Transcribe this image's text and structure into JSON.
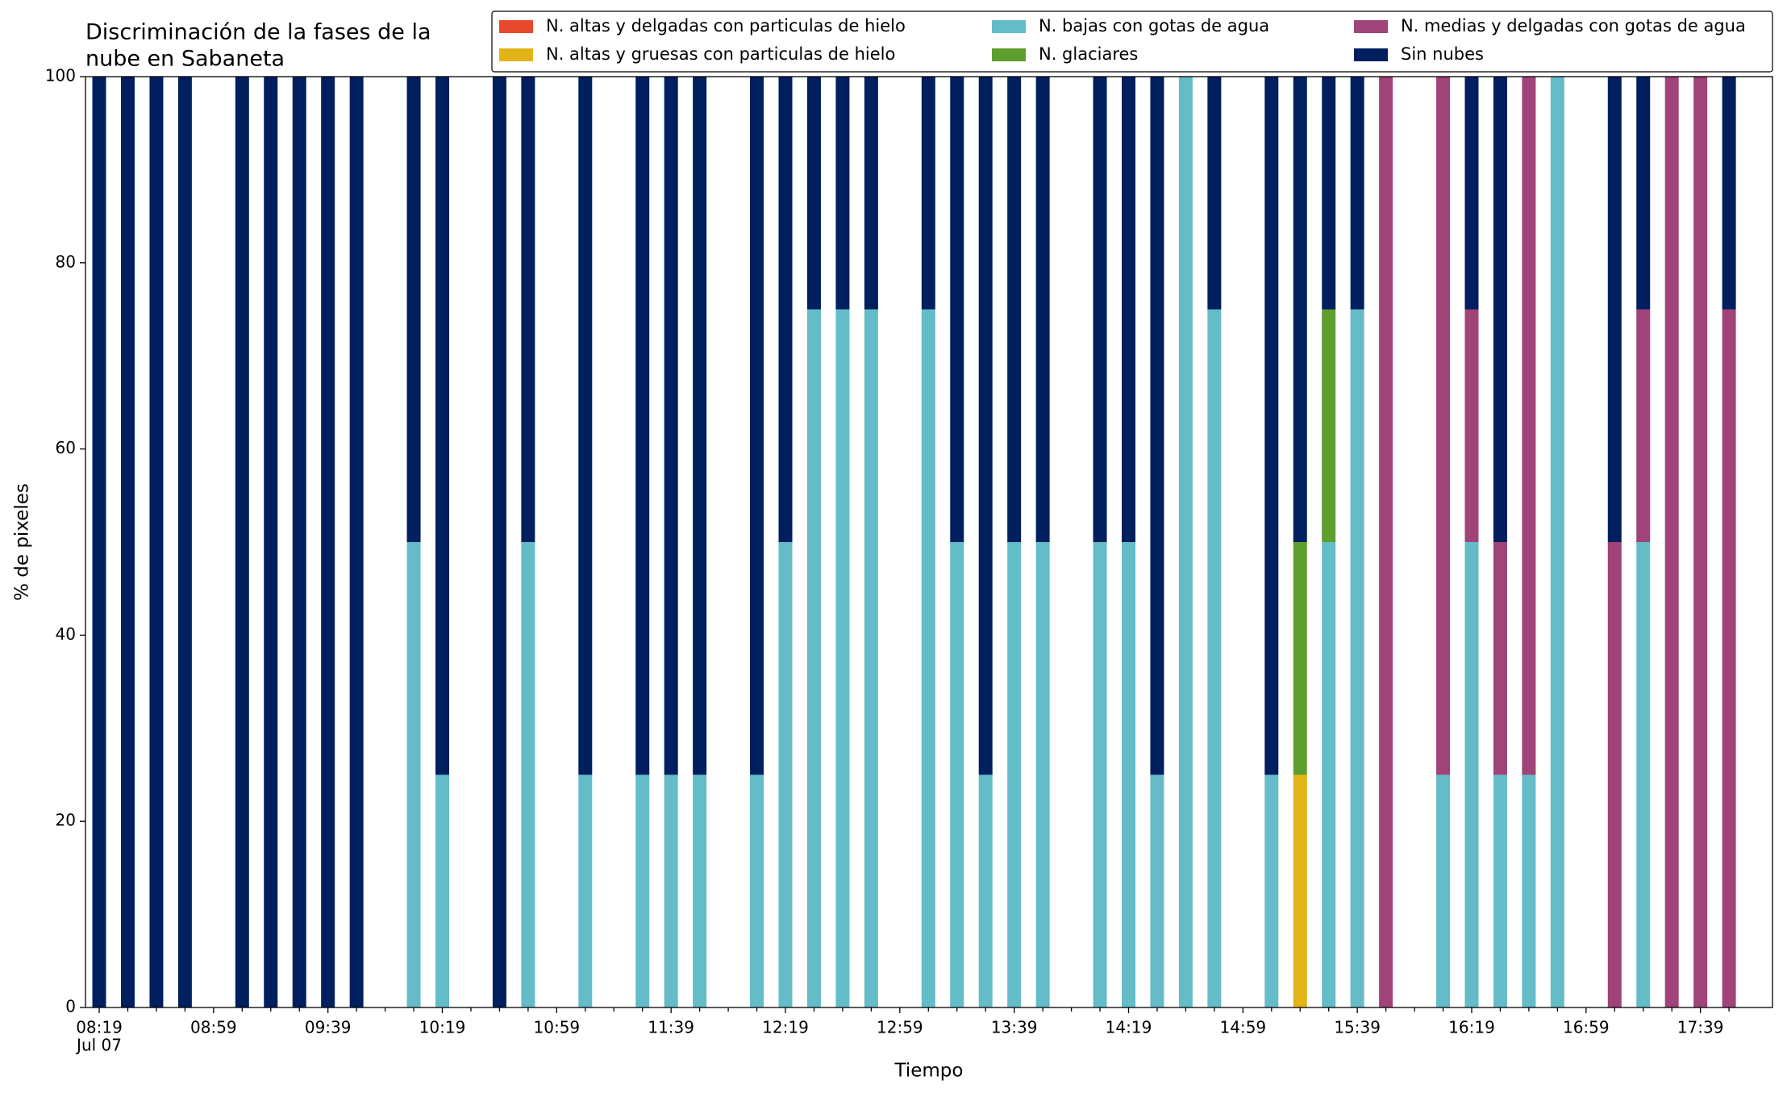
{
  "chart_data": {
    "type": "stacked_bar",
    "title": [
      "Discriminación de la fases de la",
      "nube en Sabaneta"
    ],
    "xlabel": "Tiempo",
    "ylabel": "% de pixeles",
    "x_sublabel": "Jul 07",
    "categories": [
      "08:19",
      null,
      null,
      null,
      "08:59",
      null,
      null,
      null,
      "09:39",
      null,
      null,
      null,
      "10:19",
      null,
      null,
      null,
      "10:59",
      null,
      null,
      null,
      "11:39",
      null,
      null,
      null,
      "12:19",
      null,
      null,
      null,
      "12:59",
      null,
      null,
      null,
      "13:39",
      null,
      null,
      null,
      "14:19",
      null,
      null,
      null,
      "14:59",
      null,
      null,
      null,
      "15:39",
      null,
      null,
      null,
      "16:19",
      null,
      null,
      null,
      "16:59",
      null,
      null,
      null,
      "17:39",
      null
    ],
    "ylim": [
      0,
      100
    ],
    "yticks": [
      0,
      20,
      40,
      60,
      80,
      100
    ],
    "grid": false,
    "legend": "upper right",
    "series": [
      {
        "name": "N. altas y delgadas con particulas de hielo",
        "color": "#e8482c",
        "values": [
          0,
          0,
          0,
          0,
          0,
          0,
          0,
          0,
          0,
          0,
          0,
          0,
          0,
          0,
          0,
          0,
          0,
          0,
          0,
          0,
          0,
          0,
          0,
          0,
          0,
          0,
          0,
          0,
          0,
          0,
          0,
          0,
          0,
          0,
          0,
          0,
          0,
          0,
          0,
          0,
          0,
          0,
          0,
          0,
          0,
          0,
          0,
          0,
          0,
          0,
          0,
          0,
          0,
          0,
          0,
          0,
          0,
          0
        ]
      },
      {
        "name": "N. altas y gruesas con particulas de hielo",
        "color": "#e3b418",
        "values": [
          0,
          0,
          0,
          0,
          0,
          0,
          0,
          0,
          0,
          0,
          0,
          0,
          0,
          0,
          0,
          0,
          0,
          0,
          0,
          0,
          0,
          0,
          0,
          0,
          0,
          0,
          0,
          0,
          0,
          0,
          0,
          0,
          0,
          0,
          0,
          0,
          0,
          0,
          0,
          0,
          0,
          0,
          25,
          0,
          0,
          0,
          0,
          0,
          0,
          0,
          0,
          0,
          0,
          0,
          0,
          0,
          0,
          0
        ]
      },
      {
        "name": "N. bajas con gotas de agua",
        "color": "#64bcc8",
        "values": [
          0,
          0,
          0,
          0,
          0,
          0,
          0,
          0,
          0,
          0,
          0,
          50,
          25,
          0,
          0,
          50,
          0,
          25,
          0,
          25,
          25,
          25,
          0,
          25,
          50,
          75,
          75,
          75,
          0,
          75,
          50,
          25,
          50,
          50,
          0,
          50,
          50,
          25,
          100,
          75,
          0,
          25,
          0,
          50,
          75,
          0,
          0,
          25,
          50,
          25,
          25,
          100,
          0,
          0,
          50,
          0,
          0,
          0
        ]
      },
      {
        "name": "N. glaciares",
        "color": "#5e9e2e",
        "values": [
          0,
          0,
          0,
          0,
          0,
          0,
          0,
          0,
          0,
          0,
          0,
          0,
          0,
          0,
          0,
          0,
          0,
          0,
          0,
          0,
          0,
          0,
          0,
          0,
          0,
          0,
          0,
          0,
          0,
          0,
          0,
          0,
          0,
          0,
          0,
          0,
          0,
          0,
          0,
          0,
          0,
          0,
          25,
          25,
          0,
          0,
          0,
          0,
          0,
          0,
          0,
          0,
          0,
          0,
          0,
          0,
          0,
          0
        ]
      },
      {
        "name": "N. medias y delgadas con gotas de agua",
        "color": "#a04378",
        "values": [
          0,
          0,
          0,
          0,
          0,
          0,
          0,
          0,
          0,
          0,
          0,
          0,
          0,
          0,
          0,
          0,
          0,
          0,
          0,
          0,
          0,
          0,
          0,
          0,
          0,
          0,
          0,
          0,
          0,
          0,
          0,
          0,
          0,
          0,
          0,
          0,
          0,
          0,
          0,
          0,
          0,
          0,
          0,
          0,
          0,
          100,
          0,
          75,
          25,
          25,
          75,
          0,
          0,
          50,
          25,
          100,
          100,
          75
        ]
      },
      {
        "name": "Sin nubes",
        "color": "#001f5e",
        "values": [
          100,
          100,
          100,
          100,
          0,
          100,
          100,
          100,
          100,
          100,
          0,
          50,
          75,
          0,
          100,
          50,
          0,
          75,
          0,
          75,
          75,
          75,
          0,
          75,
          50,
          25,
          25,
          25,
          0,
          25,
          50,
          75,
          50,
          50,
          0,
          50,
          50,
          75,
          0,
          25,
          0,
          75,
          50,
          25,
          25,
          0,
          0,
          0,
          25,
          50,
          0,
          0,
          0,
          50,
          25,
          0,
          0,
          25
        ]
      }
    ]
  }
}
